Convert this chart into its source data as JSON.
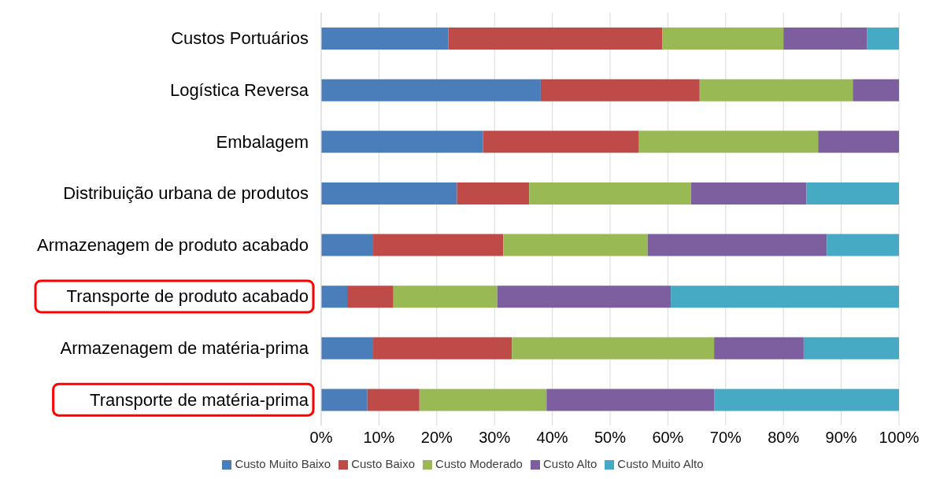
{
  "chart_data": {
    "type": "bar",
    "orientation": "horizontal",
    "stacked": true,
    "categories": [
      "Custos Portuários",
      "Logística Reversa",
      "Embalagem",
      "Distribuição urbana de produtos",
      "Armazenagem de produto acabado",
      "Transporte  de produto acabado",
      "Armazenagem de matéria-prima",
      "Transporte  de matéria-prima"
    ],
    "series": [
      {
        "name": "Custo Muito Baixo",
        "color": "#4a7ebb",
        "values": [
          22,
          38,
          28,
          23.5,
          9,
          4.5,
          9,
          8
        ]
      },
      {
        "name": "Custo Baixo",
        "color": "#be4b48",
        "values": [
          37,
          27.5,
          27,
          12.5,
          22.5,
          8,
          24,
          9
        ]
      },
      {
        "name": "Custo Moderado",
        "color": "#98b954",
        "values": [
          21,
          26.5,
          31,
          28,
          25,
          18,
          35,
          22
        ]
      },
      {
        "name": "Custo Alto",
        "color": "#7d5fa0",
        "values": [
          14.5,
          8,
          14,
          20,
          31,
          30,
          15.5,
          29
        ]
      },
      {
        "name": "Custo Muito Alto",
        "color": "#46aac5",
        "values": [
          5.5,
          0,
          0,
          16,
          12.5,
          39.5,
          16.5,
          32
        ]
      }
    ],
    "xlim": [
      0,
      100
    ],
    "xticks": [
      {
        "value": 0,
        "label": "0%"
      },
      {
        "value": 10,
        "label": "10%"
      },
      {
        "value": 20,
        "label": "20%"
      },
      {
        "value": 30,
        "label": "30%"
      },
      {
        "value": 40,
        "label": "40%"
      },
      {
        "value": 50,
        "label": "50%"
      },
      {
        "value": 60,
        "label": "60%"
      },
      {
        "value": 70,
        "label": "70%"
      },
      {
        "value": 80,
        "label": "80%"
      },
      {
        "value": 90,
        "label": "90%"
      },
      {
        "value": 100,
        "label": "100%"
      }
    ],
    "grid": "x",
    "legend": "bottom"
  }
}
